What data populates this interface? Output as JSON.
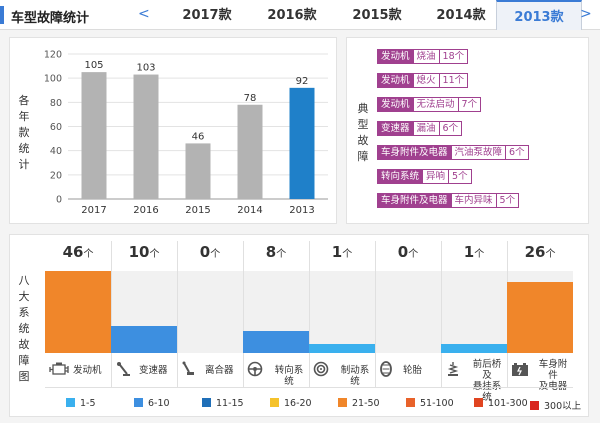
{
  "header": {
    "title": "车型故障统计",
    "prev_arrow": "<",
    "next_arrow": ">",
    "tabs": [
      {
        "label": "2017款",
        "active": false
      },
      {
        "label": "2016款",
        "active": false
      },
      {
        "label": "2015款",
        "active": false
      },
      {
        "label": "2014款",
        "active": false
      },
      {
        "label": "2013款",
        "active": true
      }
    ]
  },
  "chart_data": {
    "type": "bar",
    "ylabel": "各年款统计",
    "categories": [
      "2017",
      "2016",
      "2015",
      "2014",
      "2013"
    ],
    "values": [
      105,
      103,
      46,
      78,
      92
    ],
    "highlight_index": 4,
    "ylim": [
      0,
      120
    ],
    "yticks": [
      0,
      20,
      40,
      60,
      80,
      100,
      120
    ],
    "grid": true,
    "colors": {
      "default": "#b3b3b3",
      "highlight": "#1f80c9"
    }
  },
  "typical_faults": {
    "label": "典型故障",
    "items": [
      {
        "system": "发动机",
        "symptom": "烧油",
        "count": "18个"
      },
      {
        "system": "发动机",
        "symptom": "熄火",
        "count": "11个"
      },
      {
        "system": "发动机",
        "symptom": "无法启动",
        "count": "7个"
      },
      {
        "system": "变速器",
        "symptom": "漏油",
        "count": "6个"
      },
      {
        "system": "车身附件及电器",
        "symptom": "汽油泵故障",
        "count": "6个"
      },
      {
        "system": "转向系统",
        "symptom": "异响",
        "count": "5个"
      },
      {
        "system": "车身附件及电器",
        "symptom": "车内异味",
        "count": "5个"
      }
    ]
  },
  "systems": {
    "label": "八大系统故障图",
    "max_level": 30,
    "items": [
      {
        "name": "发动机",
        "count": "46",
        "unit": "个",
        "icon": "engine-icon",
        "level": 46,
        "color": "#f0862a"
      },
      {
        "name": "变速器",
        "count": "10",
        "unit": "个",
        "icon": "gear-shift-icon",
        "level": 10,
        "color": "#3d8fe0"
      },
      {
        "name": "离合器",
        "count": "0",
        "unit": "个",
        "icon": "clutch-pedal-icon",
        "level": 0,
        "color": "#3d8fe0"
      },
      {
        "name": "转向系统",
        "count": "8",
        "unit": "个",
        "icon": "steering-wheel-icon",
        "level": 8,
        "color": "#3d8fe0"
      },
      {
        "name": "制动系统",
        "count": "1",
        "unit": "个",
        "icon": "brake-disc-icon",
        "level": 1,
        "color": "#3ab0ee"
      },
      {
        "name": "轮胎",
        "count": "0",
        "unit": "个",
        "icon": "tire-icon",
        "level": 0,
        "color": "#3d8fe0"
      },
      {
        "name": "前后桥及悬挂系统",
        "name_line1": "前后桥及",
        "name_line2": "悬挂系统",
        "count": "1",
        "unit": "个",
        "icon": "suspension-icon",
        "level": 1,
        "color": "#3ab0ee"
      },
      {
        "name": "车身附件及电器",
        "name_line1": "车身附件",
        "name_line2": "及电器",
        "count": "26",
        "unit": "个",
        "icon": "battery-icon",
        "level": 26,
        "color": "#f0862a"
      }
    ]
  },
  "legend": [
    {
      "label": "1-5",
      "color": "#3ab0ee"
    },
    {
      "label": "6-10",
      "color": "#3d8fe0"
    },
    {
      "label": "11-15",
      "color": "#1f6fb8"
    },
    {
      "label": "16-20",
      "color": "#f5c22b"
    },
    {
      "label": "21-50",
      "color": "#f0862a"
    },
    {
      "label": "51-100",
      "color": "#e8622a"
    },
    {
      "label": "101-300",
      "color": "#e04420"
    },
    {
      "label": "300以上",
      "color": "#d9241d"
    }
  ]
}
